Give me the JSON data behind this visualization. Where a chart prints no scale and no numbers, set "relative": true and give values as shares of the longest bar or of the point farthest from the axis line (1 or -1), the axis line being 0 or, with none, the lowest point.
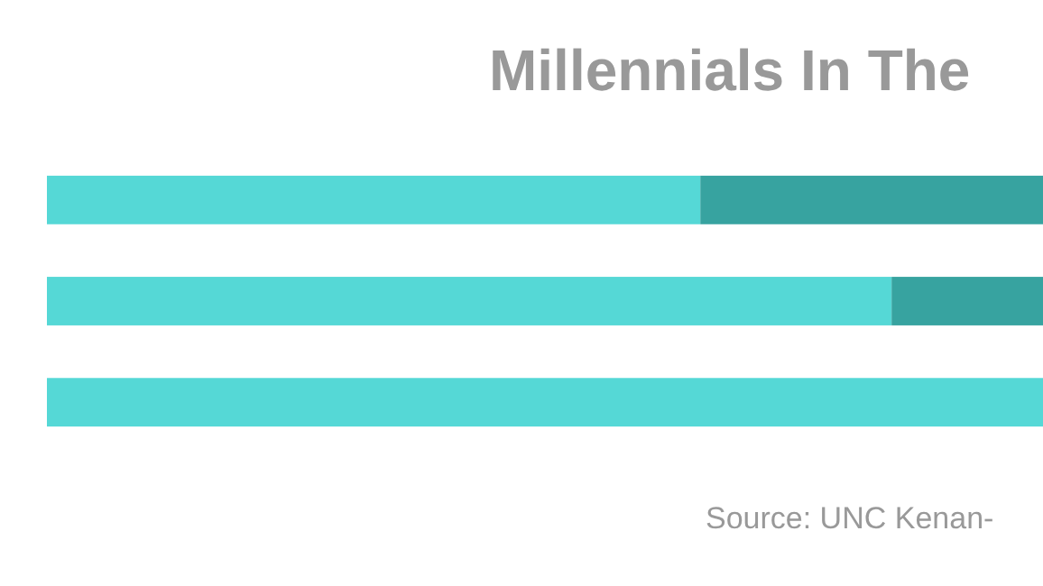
{
  "chart_data": {
    "type": "bar",
    "orientation": "horizontal",
    "stacked": true,
    "relative": true,
    "title": "Millennials In The",
    "categories": [
      null,
      null,
      null
    ],
    "series": [
      {
        "color": "#55d8d6",
        "values": [
          0.656,
          0.848,
          1.0
        ]
      },
      {
        "color": "#37a3a0",
        "values": [
          0.344,
          0.152,
          0
        ]
      }
    ],
    "annotations": [
      "Source: UNC Kenan-"
    ]
  }
}
